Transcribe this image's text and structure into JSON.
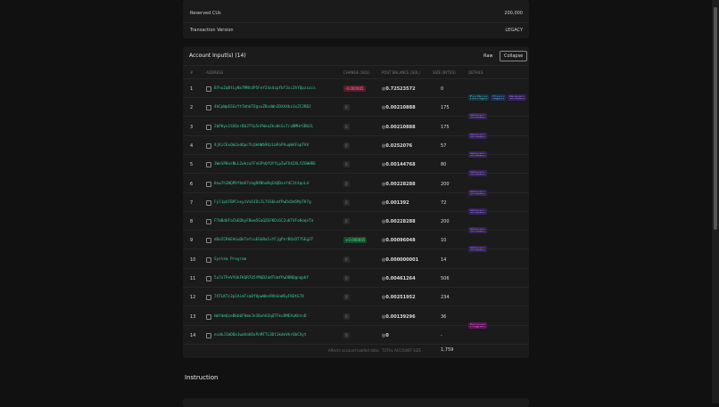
{
  "summary_rows": [
    {
      "label": "Reserved CUs",
      "value": "200,000"
    },
    {
      "label": "Transaction Version",
      "value": "LEGACY"
    }
  ],
  "accounts": {
    "title": "Account Input(s) (14)",
    "buttons": [
      "Raw",
      "Collapse"
    ],
    "headers": [
      "#",
      "ADDRESS",
      "CHANGE (SOL)",
      "POST BALANCE (SOL)",
      "SIZE (BYTES)",
      "DETAILS"
    ],
    "rows": [
      {
        "index": 1,
        "address": "B7nuZqBtLyNx7MNtdP5FeY24x4zpfbf3scZhYQpzxzcs",
        "change": "-0.000005",
        "post_balance": "◎0.72523572",
        "size": 0,
        "badges": [
          "Fee Payer",
          "Signer",
          "Writable"
        ]
      },
      {
        "index": 2,
        "address": "4kCpWpESGzYt7mhkT6gsuZ8vaWn2DXAXbz3xZC3RBJ",
        "change": "0",
        "post_balance": "◎0.00210888",
        "size": 175,
        "badges": [
          "Writable"
        ]
      },
      {
        "index": 3,
        "address": "2bPHyv1SXQsrBUJTYp5nFWeaZkcWcScTruBMHrGBUJL",
        "change": "0",
        "post_balance": "◎0.00210888",
        "size": 175,
        "badges": [
          "Writable"
        ]
      },
      {
        "index": 4,
        "address": "4jKiC6xQm2odQpcYLQkHWb9QzLbPoPVuqWAFapTAV",
        "change": "0",
        "post_balance": "◎0.0252076",
        "size": 57,
        "badges": [
          "Writable"
        ]
      },
      {
        "index": 5,
        "address": "3WeSP8nsNLL2wkzuFFnGPhQfQYfLpZwFX42XLYZGWHRE",
        "change": "0",
        "post_balance": "◎0.00144768",
        "size": 80,
        "badges": [
          "Writable"
        ]
      },
      {
        "index": 6,
        "address": "8nw7h1NQPDfbmV7sbgRXNhaRqSXQDxnf4C3t4qnLd",
        "change": "0",
        "post_balance": "◎0.00228288",
        "size": 200,
        "badges": [
          "Writable"
        ]
      },
      {
        "index": 7,
        "address": "Fyl1pXFBPCneyzVsDJDiJL7SS6LmfPwDsDm5MyTK7g",
        "change": "0",
        "post_balance": "◎0.001392",
        "size": 72,
        "badges": [
          "Writable"
        ]
      },
      {
        "index": 8,
        "address": "F7mBdUFaCbEDbyFBwm5SaQZEFKDiGC2ubTVFoKoqnTa",
        "change": "0",
        "post_balance": "◎0.00228288",
        "size": 200,
        "badges": [
          "Writable"
        ]
      },
      {
        "index": 9,
        "address": "dDoZCRkEhGuDkTefcuEGbBaIvYFjgPnrBQsDT7SEg2T",
        "change": "+0.000005",
        "post_balance": "◎0.00096048",
        "size": 10,
        "badges": [
          "Writable"
        ]
      },
      {
        "index": 10,
        "address": "System Program",
        "change": "0",
        "post_balance": "◎0.000000001",
        "size": 14,
        "badges": []
      },
      {
        "index": 11,
        "address": "5u7nTPeVYUkFKQR7U5YMQD2ddTUmfPwD8NQgnqpbf",
        "change": "0",
        "post_balance": "◎0.00461264",
        "size": 506,
        "badges": []
      },
      {
        "index": 12,
        "address": "7XTLKTc3p1AimTsaBfUpwWbn9VbSnWSyFKDtE7X",
        "change": "0",
        "post_balance": "◎0.00251952",
        "size": 234,
        "badges": []
      },
      {
        "index": 13,
        "address": "HmYdmQzeBkbbFHmnJe1BuhXZqQTFkvDMEXuKktnD",
        "change": "0",
        "post_balance": "◎0.00139296",
        "size": 36,
        "badges": [
          "Program"
        ]
      },
      {
        "index": 14,
        "address": "ecdkJ1bDBa1wdAahDxPnMFTL3Dt1kdeVkrQbCXyt",
        "change": "0",
        "post_balance": "◎0",
        "size": "-",
        "badges": []
      }
    ],
    "footer": {
      "label": "Affects account loaded data:",
      "total_label": "TOTAL ACCOUNT SIZE",
      "total": "1,759"
    }
  },
  "instruction_title": "Instruction"
}
